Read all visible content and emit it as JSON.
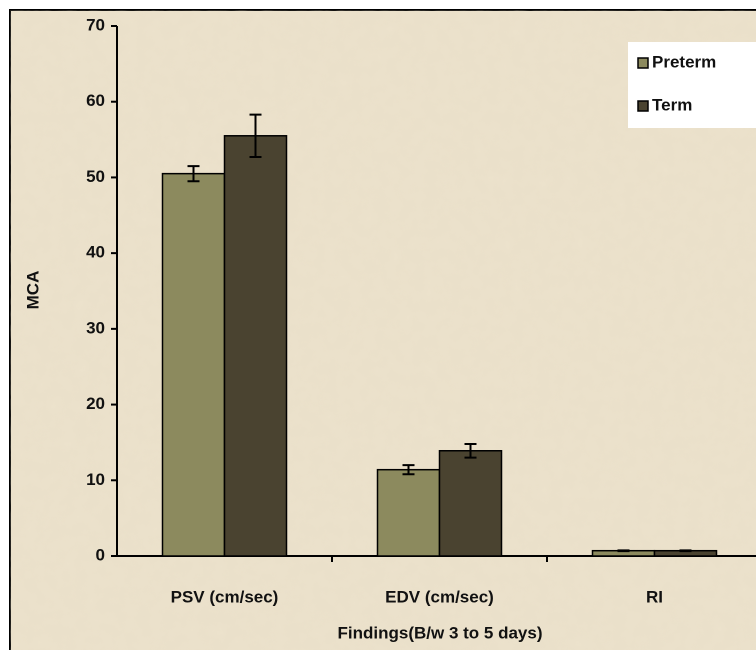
{
  "chart_data": {
    "type": "bar",
    "x_label": "Findings(B/w 3 to 5 days)",
    "y_label": "MCA",
    "categories": [
      "PSV (cm/sec)",
      "EDV (cm/sec)",
      "RI"
    ],
    "series": [
      {
        "name": "Preterm",
        "color": "#8c8a5e",
        "values": [
          50.5,
          11.4,
          0.7
        ],
        "errors": [
          1.0,
          0.6,
          0.05
        ]
      },
      {
        "name": "Term",
        "color": "#4a4330",
        "values": [
          55.5,
          13.9,
          0.7
        ],
        "errors": [
          2.8,
          0.9,
          0.05
        ]
      }
    ],
    "ylim": [
      0,
      70
    ],
    "yticks": [
      0,
      10,
      20,
      30,
      40,
      50,
      60,
      70
    ],
    "legend": "top-right"
  }
}
